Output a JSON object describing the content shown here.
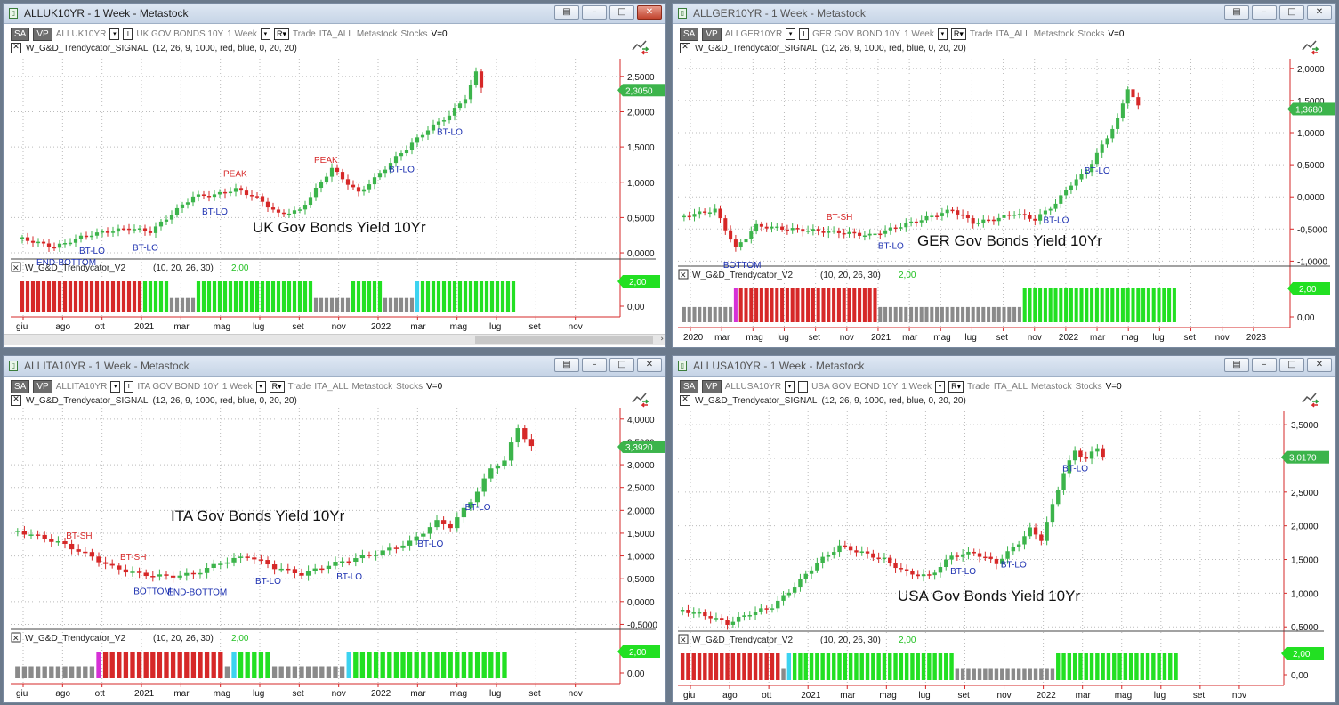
{
  "windows": [
    {
      "id": "uk",
      "title": "ALLUK10YR - 1 Week - Metastock",
      "toolbar": {
        "sa": "SA",
        "vp": "VP",
        "symbol": "ALLUK10YR",
        "security": "UK GOV BONDS 10Y",
        "period": "1 Week",
        "r": "R",
        "trade": "Trade",
        "group": "ITA_ALL",
        "source": "Metastock",
        "type": "Stocks",
        "vol": "V=0"
      },
      "signal_indicator": {
        "name": "W_G&D_Trendycator_SIGNAL",
        "params": "(12, 26, 9, 1000, red, blue, 0, 20, 20)"
      },
      "sub_indicator": {
        "name": "W_G&D_Trendycator_V2",
        "params": "(10, 20, 26, 30)",
        "value": "2,00"
      },
      "plot_title": "UK Gov Bonds Yield 10Yr",
      "last_value": "2,3050",
      "sub_last_value": "2,00",
      "sub_axis_label": "0,00",
      "y_ticks": [
        "2,5000",
        "2,0000",
        "1,5000",
        "1,0000",
        "0,5000",
        "0,0000"
      ],
      "y_range": [
        -0.05,
        2.75
      ],
      "x_labels": [
        "giu",
        "ago",
        "ott",
        "2021",
        "mar",
        "mag",
        "lug",
        "set",
        "nov",
        "2022",
        "mar",
        "mag",
        "lug",
        "set",
        "nov"
      ],
      "annotations": [
        {
          "text": "END-BOTTOM",
          "color": "blue",
          "bar": 5,
          "pos": "below"
        },
        {
          "text": "BT-LO",
          "color": "blue",
          "bar": 13,
          "pos": "below"
        },
        {
          "text": "BT-LO",
          "color": "blue",
          "bar": 23,
          "pos": "below"
        },
        {
          "text": "PEAK",
          "color": "red",
          "bar": 40,
          "pos": "above"
        },
        {
          "text": "BT-LO",
          "color": "blue",
          "bar": 36,
          "pos": "below"
        },
        {
          "text": "PEAK",
          "color": "red",
          "bar": 57,
          "pos": "above"
        },
        {
          "text": "BT-LO",
          "color": "blue",
          "bar": 71,
          "pos": "below"
        },
        {
          "text": "BT-LO",
          "color": "blue",
          "bar": 80,
          "pos": "below"
        }
      ],
      "series_keypoints": [
        [
          0,
          0.2
        ],
        [
          6,
          0.08
        ],
        [
          12,
          0.25
        ],
        [
          20,
          0.35
        ],
        [
          24,
          0.3
        ],
        [
          28,
          0.55
        ],
        [
          32,
          0.8
        ],
        [
          36,
          0.82
        ],
        [
          40,
          0.9
        ],
        [
          44,
          0.78
        ],
        [
          48,
          0.55
        ],
        [
          52,
          0.6
        ],
        [
          56,
          1.0
        ],
        [
          58,
          1.2
        ],
        [
          60,
          1.05
        ],
        [
          63,
          0.85
        ],
        [
          66,
          1.05
        ],
        [
          70,
          1.35
        ],
        [
          73,
          1.55
        ],
        [
          76,
          1.75
        ],
        [
          80,
          1.95
        ],
        [
          83,
          2.2
        ],
        [
          85,
          2.55
        ],
        [
          86,
          2.35
        ]
      ],
      "trend_segments": [
        [
          "red",
          0,
          23
        ],
        [
          "green",
          23,
          28
        ],
        [
          "gray",
          28,
          33
        ],
        [
          "green",
          33,
          55
        ],
        [
          "gray",
          55,
          62
        ],
        [
          "green",
          62,
          68
        ],
        [
          "gray",
          68,
          74
        ],
        [
          "cyan",
          74,
          75
        ],
        [
          "green",
          75,
          93
        ]
      ],
      "colors": {
        "up": "#3cb44b",
        "down": "#d62828"
      }
    },
    {
      "id": "ger",
      "title": "ALLGER10YR - 1 Week - Metastock",
      "toolbar": {
        "sa": "SA",
        "vp": "VP",
        "symbol": "ALLGER10YR",
        "security": "GER GOV BOND 10Y",
        "period": "1 Week",
        "r": "R",
        "trade": "Trade",
        "group": "ITA_ALL",
        "source": "Metastock",
        "type": "Stocks",
        "vol": "V=0"
      },
      "signal_indicator": {
        "name": "W_G&D_Trendycator_SIGNAL",
        "params": "(12, 26, 9, 1000, red, blue, 0, 20, 20)"
      },
      "sub_indicator": {
        "name": "W_G&D_Trendycator_V2",
        "params": "(10, 20, 26, 30)",
        "value": "2,00"
      },
      "plot_title": "GER Gov Bonds Yield 10Yr",
      "last_value": "1,3680",
      "sub_last_value": "2,00",
      "sub_axis_label": "0,00",
      "y_ticks": [
        "2,0000",
        "1,5000",
        "1,0000",
        "0,5000",
        "0,0000",
        "-0,5000",
        "-1,0000"
      ],
      "y_range": [
        -1.05,
        2.15
      ],
      "x_labels": [
        "2020",
        "mar",
        "mag",
        "lug",
        "set",
        "nov",
        "2021",
        "mar",
        "mag",
        "lug",
        "set",
        "nov",
        "2022",
        "mar",
        "mag",
        "lug",
        "set",
        "nov",
        "2023"
      ],
      "annotations": [
        {
          "text": "BOTTOM",
          "color": "blue",
          "bar": 10,
          "pos": "below"
        },
        {
          "text": "BT-SH",
          "color": "red",
          "bar": 30,
          "pos": "above"
        },
        {
          "text": "BT-LO",
          "color": "blue",
          "bar": 40,
          "pos": "below"
        },
        {
          "text": "BT-LO",
          "color": "blue",
          "bar": 72,
          "pos": "below"
        },
        {
          "text": "BT-LO",
          "color": "blue",
          "bar": 80,
          "pos": "below"
        }
      ],
      "series_keypoints": [
        [
          0,
          -0.3
        ],
        [
          6,
          -0.2
        ],
        [
          10,
          -0.8
        ],
        [
          14,
          -0.45
        ],
        [
          20,
          -0.5
        ],
        [
          30,
          -0.55
        ],
        [
          36,
          -0.6
        ],
        [
          42,
          -0.45
        ],
        [
          48,
          -0.3
        ],
        [
          52,
          -0.2
        ],
        [
          56,
          -0.4
        ],
        [
          60,
          -0.35
        ],
        [
          64,
          -0.25
        ],
        [
          68,
          -0.35
        ],
        [
          72,
          -0.1
        ],
        [
          75,
          0.2
        ],
        [
          78,
          0.4
        ],
        [
          81,
          0.8
        ],
        [
          84,
          1.2
        ],
        [
          86,
          1.7
        ],
        [
          88,
          1.4
        ]
      ],
      "trend_segments": [
        [
          "gray",
          0,
          10
        ],
        [
          "magenta",
          10,
          11
        ],
        [
          "red",
          11,
          38
        ],
        [
          "gray",
          38,
          55
        ],
        [
          "gray",
          55,
          66
        ],
        [
          "green",
          66,
          96
        ]
      ],
      "colors": {
        "up": "#3cb44b",
        "down": "#d62828"
      }
    },
    {
      "id": "ita",
      "title": "ALLITA10YR - 1 Week - Metastock",
      "toolbar": {
        "sa": "SA",
        "vp": "VP",
        "symbol": "ALLITA10YR",
        "security": "ITA GOV BOND 10Y",
        "period": "1 Week",
        "r": "R",
        "trade": "Trade",
        "group": "ITA_ALL",
        "source": "Metastock",
        "type": "Stocks",
        "vol": "V=0"
      },
      "signal_indicator": {
        "name": "W_G&D_Trendycator_SIGNAL",
        "params": "(12, 26, 9, 1000, red, blue, 0, 20, 20)"
      },
      "sub_indicator": {
        "name": "W_G&D_Trendycator_V2",
        "params": "(10, 20, 26, 30)",
        "value": "2,00"
      },
      "plot_title": "ITA Gov Bonds Yield 10Yr",
      "last_value": "3,3920",
      "sub_last_value": "2,00",
      "sub_axis_label": "0,00",
      "y_ticks": [
        "4,0000",
        "3,5000",
        "3,0000",
        "2,5000",
        "2,0000",
        "1,5000",
        "1,0000",
        "0,5000",
        "0,0000",
        "-0,5000"
      ],
      "y_range": [
        -0.55,
        4.25
      ],
      "x_labels": [
        "giu",
        "ago",
        "ott",
        "2021",
        "mar",
        "mag",
        "lug",
        "set",
        "nov",
        "2022",
        "mar",
        "mag",
        "lug",
        "set",
        "nov"
      ],
      "annotations": [
        {
          "text": "BT-SH",
          "color": "red",
          "bar": 9,
          "pos": "above"
        },
        {
          "text": "BT-SH",
          "color": "red",
          "bar": 17,
          "pos": "above"
        },
        {
          "text": "BOTTOM",
          "color": "blue",
          "bar": 19,
          "pos": "below"
        },
        {
          "text": "END-BOTTOM",
          "color": "blue",
          "bar": 24,
          "pos": "below"
        },
        {
          "text": "BT-LO",
          "color": "blue",
          "bar": 37,
          "pos": "below"
        },
        {
          "text": "BT-LO",
          "color": "blue",
          "bar": 49,
          "pos": "below"
        },
        {
          "text": "BT-LO",
          "color": "blue",
          "bar": 61,
          "pos": "below"
        },
        {
          "text": "BT-LO",
          "color": "blue",
          "bar": 68,
          "pos": "below"
        }
      ],
      "series_keypoints": [
        [
          0,
          1.55
        ],
        [
          6,
          1.3
        ],
        [
          10,
          1.05
        ],
        [
          14,
          0.75
        ],
        [
          18,
          0.6
        ],
        [
          22,
          0.55
        ],
        [
          26,
          0.6
        ],
        [
          30,
          0.85
        ],
        [
          34,
          1.0
        ],
        [
          38,
          0.75
        ],
        [
          42,
          0.6
        ],
        [
          46,
          0.8
        ],
        [
          50,
          0.95
        ],
        [
          54,
          1.1
        ],
        [
          58,
          1.3
        ],
        [
          62,
          1.75
        ],
        [
          64,
          1.65
        ],
        [
          67,
          2.2
        ],
        [
          70,
          2.9
        ],
        [
          72,
          3.1
        ],
        [
          74,
          3.8
        ],
        [
          76,
          3.4
        ]
      ],
      "trend_segments": [
        [
          "gray",
          0,
          12
        ],
        [
          "magenta",
          12,
          13
        ],
        [
          "red",
          13,
          31
        ],
        [
          "gray",
          31,
          32
        ],
        [
          "cyan",
          32,
          33
        ],
        [
          "green",
          33,
          38
        ],
        [
          "gray",
          38,
          46
        ],
        [
          "gray",
          46,
          49
        ],
        [
          "cyan",
          49,
          50
        ],
        [
          "green",
          50,
          73
        ]
      ],
      "colors": {
        "up": "#3cb44b",
        "down": "#d62828"
      }
    },
    {
      "id": "usa",
      "title": "ALLUSA10YR - 1 Week - Metastock",
      "toolbar": {
        "sa": "SA",
        "vp": "VP",
        "symbol": "ALLUSA10YR",
        "security": "USA GOV BOND 10Y",
        "period": "1 Week",
        "r": "R",
        "trade": "Trade",
        "group": "ITA_ALL",
        "source": "Metastock",
        "type": "Stocks",
        "vol": "V=0"
      },
      "signal_indicator": {
        "name": "W_G&D_Trendycator_SIGNAL",
        "params": "(12, 26, 9, 1000, red, blue, 0, 20, 20)"
      },
      "sub_indicator": {
        "name": "W_G&D_Trendycator_V2",
        "params": "(10, 20, 26, 30)",
        "value": "2,00"
      },
      "plot_title": "USA Gov Bonds Yield 10Yr",
      "last_value": "3,0170",
      "sub_last_value": "2,00",
      "sub_axis_label": "0,00",
      "y_ticks": [
        "3,5000",
        "3,0000",
        "2,5000",
        "2,0000",
        "1,5000",
        "1,0000",
        "0,5000"
      ],
      "y_range": [
        0.45,
        3.7
      ],
      "x_labels": [
        "giu",
        "ago",
        "ott",
        "2021",
        "mar",
        "mag",
        "lug",
        "set",
        "nov",
        "2022",
        "mar",
        "mag",
        "lug",
        "set",
        "nov"
      ],
      "annotations": [
        {
          "text": "BT-LO",
          "color": "blue",
          "bar": 50,
          "pos": "below"
        },
        {
          "text": "BT-LO",
          "color": "blue",
          "bar": 59,
          "pos": "below"
        },
        {
          "text": "BT-LO",
          "color": "blue",
          "bar": 70,
          "pos": "below"
        }
      ],
      "series_keypoints": [
        [
          0,
          0.75
        ],
        [
          5,
          0.65
        ],
        [
          8,
          0.55
        ],
        [
          12,
          0.7
        ],
        [
          16,
          0.8
        ],
        [
          20,
          1.1
        ],
        [
          24,
          1.45
        ],
        [
          28,
          1.7
        ],
        [
          32,
          1.6
        ],
        [
          36,
          1.5
        ],
        [
          40,
          1.3
        ],
        [
          44,
          1.25
        ],
        [
          48,
          1.55
        ],
        [
          52,
          1.6
        ],
        [
          56,
          1.45
        ],
        [
          60,
          1.75
        ],
        [
          62,
          1.95
        ],
        [
          64,
          1.8
        ],
        [
          66,
          2.3
        ],
        [
          68,
          2.8
        ],
        [
          70,
          3.1
        ],
        [
          72,
          3.0
        ],
        [
          74,
          3.15
        ],
        [
          75,
          3.05
        ]
      ],
      "trend_segments": [
        [
          "red",
          0,
          18
        ],
        [
          "gray",
          18,
          19
        ],
        [
          "cyan",
          19,
          20
        ],
        [
          "green",
          20,
          49
        ],
        [
          "gray",
          49,
          57
        ],
        [
          "gray",
          57,
          64
        ],
        [
          "gray",
          64,
          67
        ],
        [
          "green",
          67,
          89
        ]
      ],
      "colors": {
        "up": "#3cb44b",
        "down": "#d62828"
      }
    }
  ]
}
